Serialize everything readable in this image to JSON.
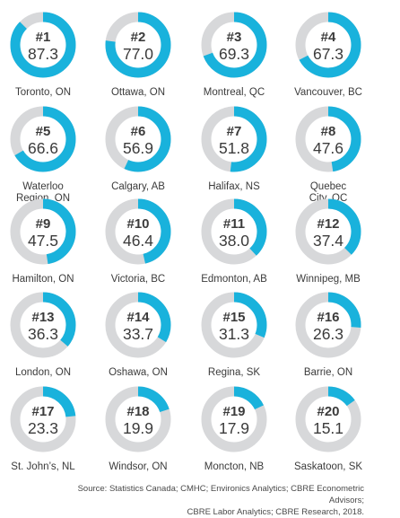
{
  "chart_data": {
    "type": "donut_grid",
    "colors": {
      "track": "#d7d8da",
      "fill": "#19b2dc",
      "text": "#3b3b3b"
    },
    "scale_max": 100,
    "items": [
      {
        "rank": "#1",
        "value": 87.3,
        "label": "Toronto, ON"
      },
      {
        "rank": "#2",
        "value": 77.0,
        "label": "Ottawa, ON"
      },
      {
        "rank": "#3",
        "value": 69.3,
        "label": "Montreal, QC"
      },
      {
        "rank": "#4",
        "value": 67.3,
        "label": "Vancouver, BC"
      },
      {
        "rank": "#5",
        "value": 66.6,
        "label": "Waterloo Region, ON"
      },
      {
        "rank": "#6",
        "value": 56.9,
        "label": "Calgary, AB"
      },
      {
        "rank": "#7",
        "value": 51.8,
        "label": "Halifax, NS"
      },
      {
        "rank": "#8",
        "value": 47.6,
        "label": "Quebec City, QC"
      },
      {
        "rank": "#9",
        "value": 47.5,
        "label": "Hamilton, ON"
      },
      {
        "rank": "#10",
        "value": 46.4,
        "label": "Victoria, BC"
      },
      {
        "rank": "#11",
        "value": 38.0,
        "label": "Edmonton, AB"
      },
      {
        "rank": "#12",
        "value": 37.4,
        "label": "Winnipeg, MB"
      },
      {
        "rank": "#13",
        "value": 36.3,
        "label": "London, ON"
      },
      {
        "rank": "#14",
        "value": 33.7,
        "label": "Oshawa, ON"
      },
      {
        "rank": "#15",
        "value": 31.3,
        "label": "Regina, SK"
      },
      {
        "rank": "#16",
        "value": 26.3,
        "label": "Barrie, ON"
      },
      {
        "rank": "#17",
        "value": 23.3,
        "label": "St. John’s, NL"
      },
      {
        "rank": "#18",
        "value": 19.9,
        "label": "Windsor, ON"
      },
      {
        "rank": "#19",
        "value": 17.9,
        "label": "Moncton, NB"
      },
      {
        "rank": "#20",
        "value": 15.1,
        "label": "Saskatoon, SK"
      }
    ]
  },
  "source": {
    "line1": "Source: Statistics Canada; CMHC; Environics Analytics; CBRE Econometric Advisors;",
    "line2": "CBRE Labor Analytics; CBRE Research, 2018."
  }
}
